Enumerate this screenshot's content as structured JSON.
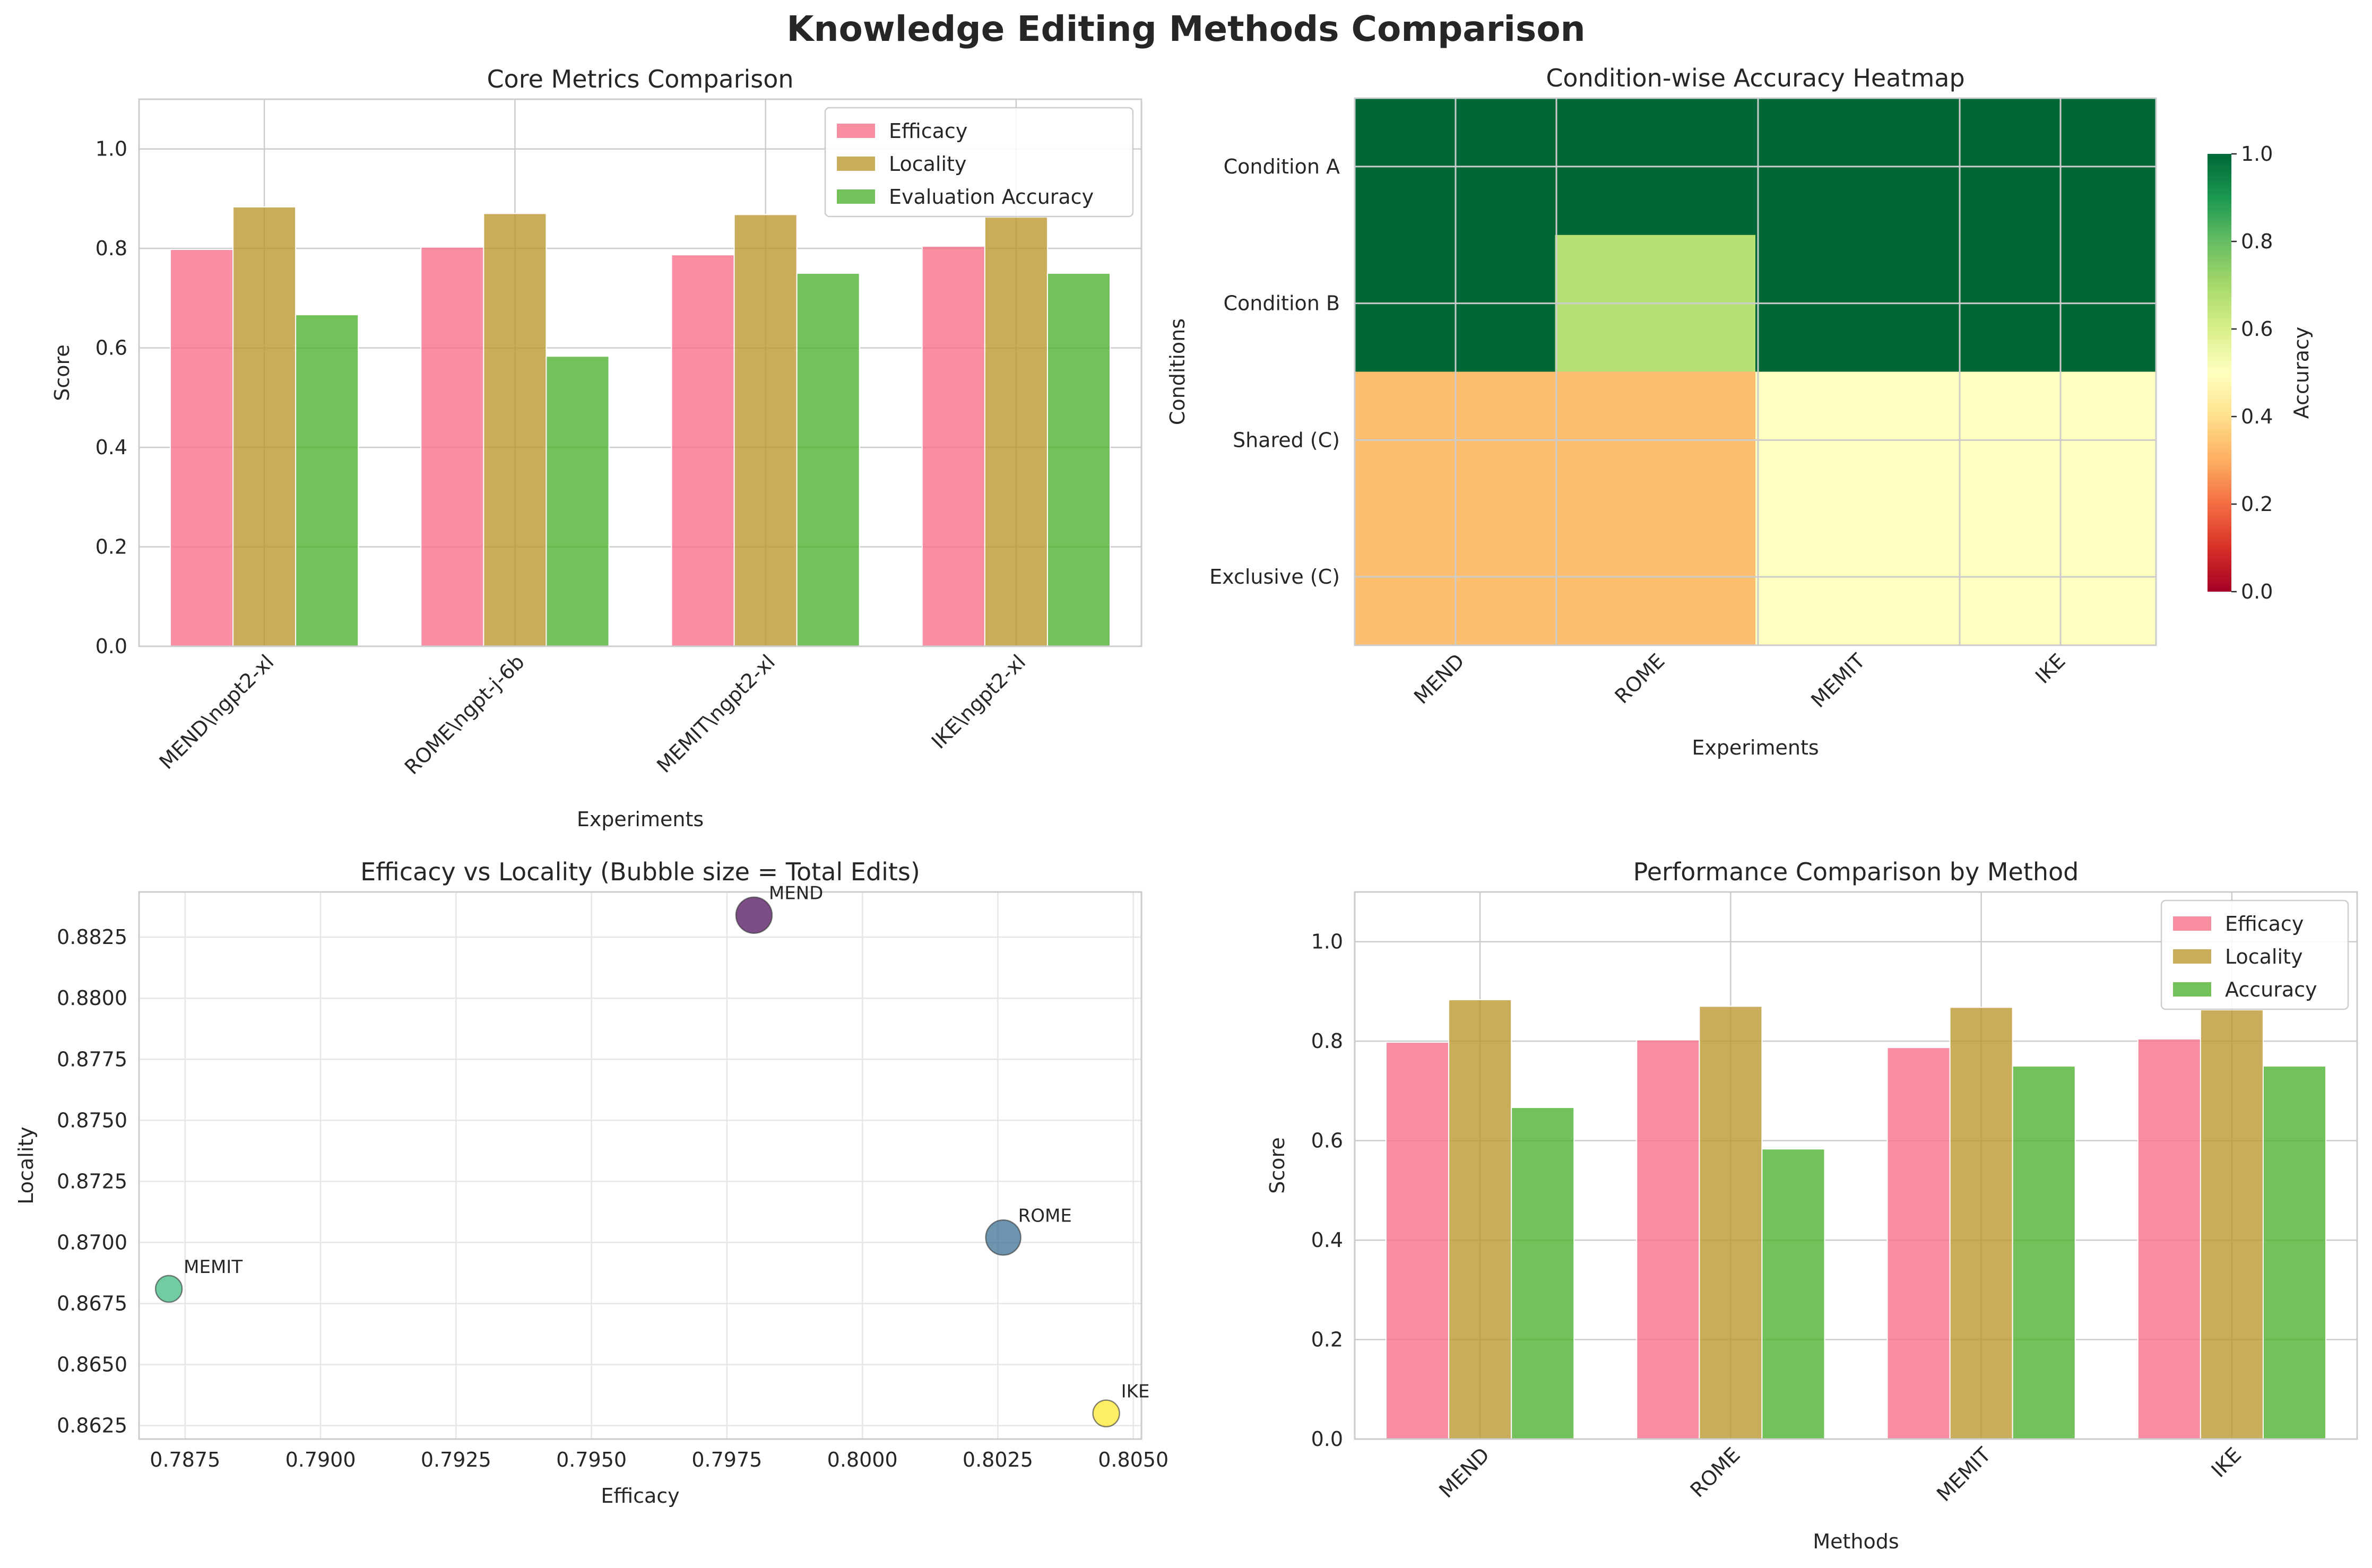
{
  "figure": {
    "title": "Knowledge Editing Methods Comparison"
  },
  "colors": {
    "efficacy": "#f77189",
    "locality": "#bb9832",
    "accuracy": "#50b131",
    "grid": "#cccccc",
    "axes": "#cccccc"
  },
  "chart_data": [
    {
      "id": "core",
      "type": "bar",
      "title": "Core Metrics Comparison",
      "xlabel": "Experiments",
      "ylabel": "Score",
      "categories": [
        "MEND\\ngpt2-xl",
        "ROME\\ngpt-j-6b",
        "MEMIT\\ngpt2-xl",
        "IKE\\ngpt2-xl"
      ],
      "series": [
        {
          "name": "Efficacy",
          "values": [
            0.798,
            0.8026,
            0.7872,
            0.8045
          ]
        },
        {
          "name": "Locality",
          "values": [
            0.8834,
            0.8702,
            0.8681,
            0.863
          ]
        },
        {
          "name": "Evaluation Accuracy",
          "values": [
            0.6667,
            0.5833,
            0.75,
            0.75
          ]
        }
      ],
      "ylim": [
        0,
        1.1
      ],
      "yticks": [
        "0.0",
        "0.2",
        "0.4",
        "0.6",
        "0.8",
        "1.0"
      ],
      "grid": true,
      "legend": "top-right"
    },
    {
      "id": "heatmap",
      "type": "heatmap",
      "title": "Condition-wise Accuracy Heatmap",
      "xlabel": "Experiments",
      "ylabel": "Conditions",
      "x": [
        "MEND",
        "ROME",
        "MEMIT",
        "IKE"
      ],
      "y": [
        "Condition A",
        "Condition B",
        "Shared (C)",
        "Exclusive (C)"
      ],
      "values": [
        [
          1.0,
          1.0,
          1.0,
          1.0
        ],
        [
          1.0,
          0.6667,
          1.0,
          1.0
        ],
        [
          0.333,
          0.333,
          0.5,
          0.5
        ],
        [
          0.333,
          0.333,
          0.5,
          0.5
        ]
      ],
      "colorbar": {
        "label": "Accuracy",
        "range": [
          0,
          1
        ],
        "ticks": [
          "0.0",
          "0.2",
          "0.4",
          "0.6",
          "0.8",
          "1.0"
        ],
        "colormap": "RdYlGn"
      }
    },
    {
      "id": "scatter",
      "type": "scatter",
      "title": "Efficacy vs Locality (Bubble size = Total Edits)",
      "xlabel": "Efficacy",
      "ylabel": "Locality",
      "points": [
        {
          "label": "MEND",
          "x": 0.798,
          "y": 0.8834,
          "color": "#440154"
        },
        {
          "label": "ROME",
          "x": 0.8026,
          "y": 0.8702,
          "color": "#31688e"
        },
        {
          "label": "MEMIT",
          "x": 0.7872,
          "y": 0.8681,
          "color": "#35b779"
        },
        {
          "label": "IKE",
          "x": 0.8045,
          "y": 0.863,
          "color": "#fde725"
        }
      ],
      "xlim": [
        0.78665,
        0.80515
      ],
      "ylim": [
        0.86195,
        0.88435
      ],
      "xticks": [
        "0.7875",
        "0.7900",
        "0.7925",
        "0.7950",
        "0.7975",
        "0.8000",
        "0.8025",
        "0.8050"
      ],
      "yticks": [
        "0.8625",
        "0.8650",
        "0.8675",
        "0.8700",
        "0.8725",
        "0.8750",
        "0.8775",
        "0.8800",
        "0.8825"
      ],
      "grid": true
    },
    {
      "id": "perf",
      "type": "bar",
      "title": "Performance Comparison by Method",
      "xlabel": "Methods",
      "ylabel": "Score",
      "categories": [
        "MEND",
        "ROME",
        "MEMIT",
        "IKE"
      ],
      "series": [
        {
          "name": "Efficacy",
          "values": [
            0.798,
            0.8026,
            0.7872,
            0.8045
          ]
        },
        {
          "name": "Locality",
          "values": [
            0.8834,
            0.8702,
            0.8681,
            0.863
          ]
        },
        {
          "name": "Accuracy",
          "values": [
            0.6667,
            0.5833,
            0.75,
            0.75
          ]
        }
      ],
      "ylim": [
        0,
        1.1
      ],
      "yticks": [
        "0.0",
        "0.2",
        "0.4",
        "0.6",
        "0.8",
        "1.0"
      ],
      "grid": true,
      "legend": "top-right"
    }
  ]
}
